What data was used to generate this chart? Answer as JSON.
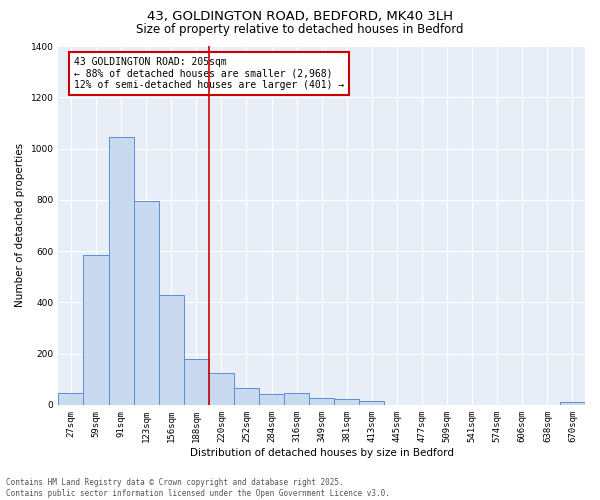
{
  "title": "43, GOLDINGTON ROAD, BEDFORD, MK40 3LH",
  "subtitle": "Size of property relative to detached houses in Bedford",
  "xlabel": "Distribution of detached houses by size in Bedford",
  "ylabel": "Number of detached properties",
  "bar_color": "#c9d9f0",
  "bar_edge_color": "#5b8fd4",
  "background_color": "#e8eef8",
  "grid_color": "#ffffff",
  "categories": [
    "27sqm",
    "59sqm",
    "91sqm",
    "123sqm",
    "156sqm",
    "188sqm",
    "220sqm",
    "252sqm",
    "284sqm",
    "316sqm",
    "349sqm",
    "381sqm",
    "413sqm",
    "445sqm",
    "477sqm",
    "509sqm",
    "541sqm",
    "574sqm",
    "606sqm",
    "638sqm",
    "670sqm"
  ],
  "values": [
    48,
    585,
    1045,
    795,
    430,
    180,
    125,
    65,
    42,
    48,
    27,
    22,
    15,
    0,
    0,
    0,
    0,
    0,
    0,
    0,
    13
  ],
  "vline_x": 5.5,
  "vline_color": "#cc0000",
  "annotation_text": "43 GOLDINGTON ROAD: 205sqm\n← 88% of detached houses are smaller (2,968)\n12% of semi-detached houses are larger (401) →",
  "ylim": [
    0,
    1400
  ],
  "yticks": [
    0,
    200,
    400,
    600,
    800,
    1000,
    1200,
    1400
  ],
  "footer_line1": "Contains HM Land Registry data © Crown copyright and database right 2025.",
  "footer_line2": "Contains public sector information licensed under the Open Government Licence v3.0.",
  "title_fontsize": 9.5,
  "subtitle_fontsize": 8.5,
  "axis_label_fontsize": 7.5,
  "tick_fontsize": 6.5,
  "annotation_fontsize": 7,
  "footer_fontsize": 5.5
}
